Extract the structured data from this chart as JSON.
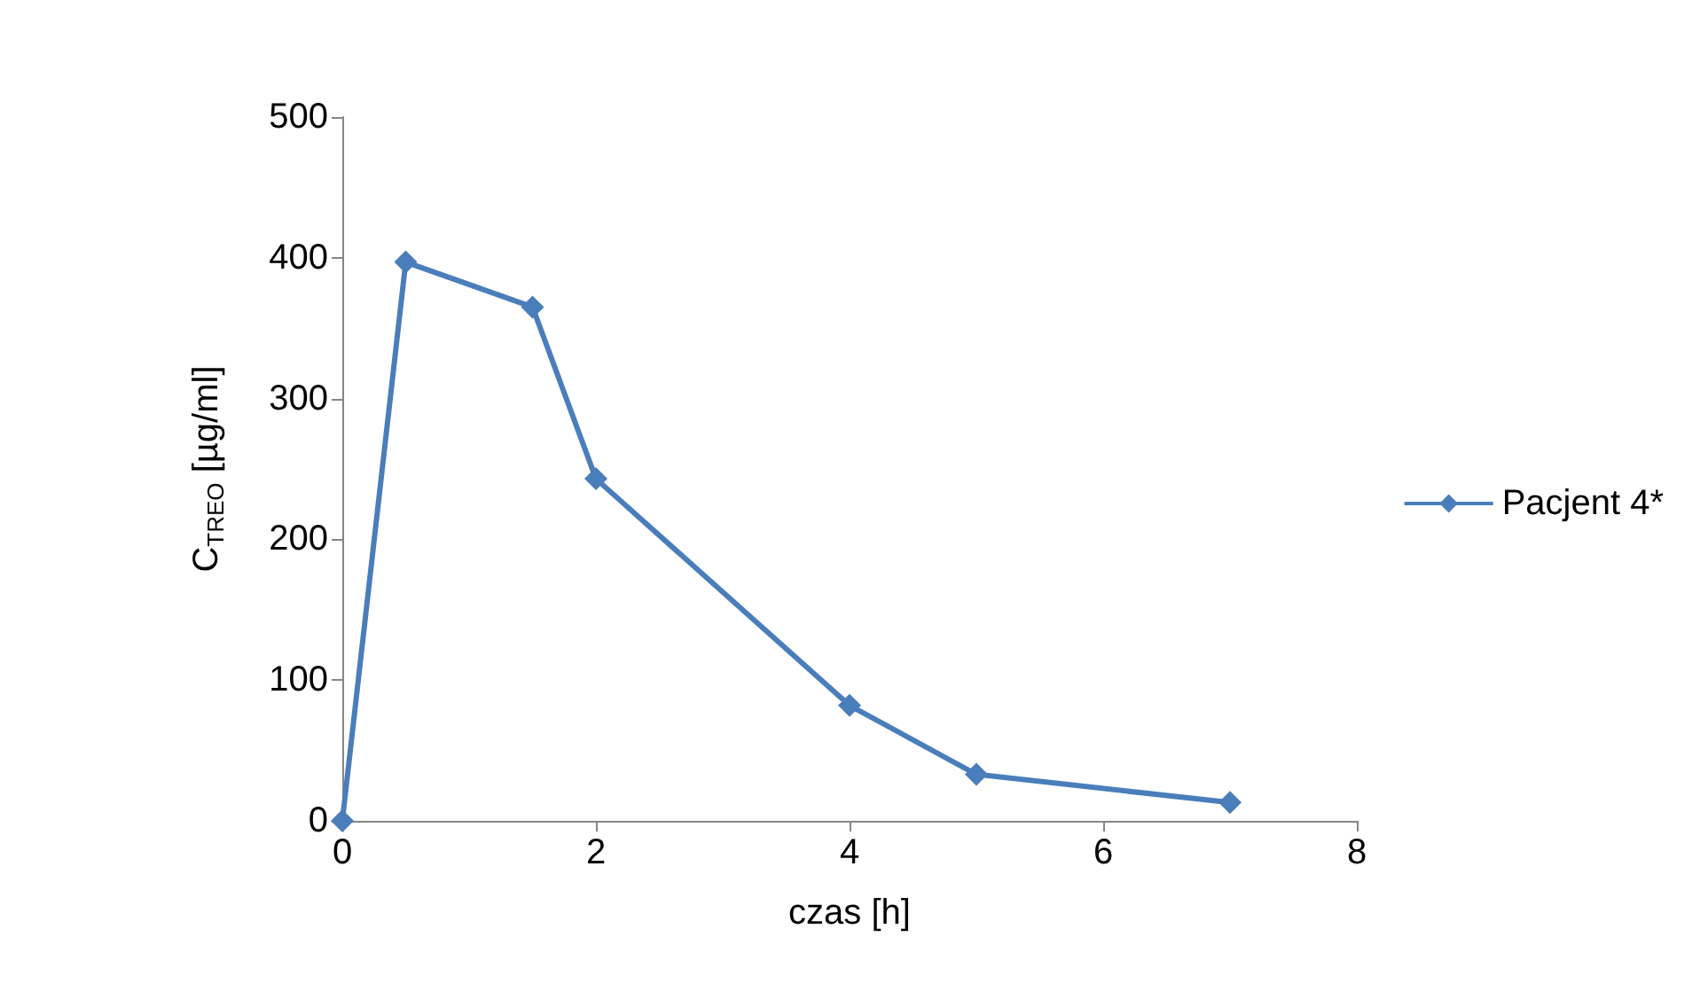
{
  "chart_data": {
    "type": "line",
    "xlabel": "czas [h]",
    "ylabel": "C$_{TREO}$ [µg/ml]",
    "x": [
      0,
      0.5,
      1.5,
      2,
      4,
      5,
      7
    ],
    "series": [
      {
        "name": "Pacjent 4*",
        "color": "#4a7ebb",
        "values": [
          0,
          397,
          365,
          243,
          82,
          33,
          13
        ]
      }
    ],
    "xlim": [
      0,
      8
    ],
    "xticks": [
      0,
      2,
      4,
      6,
      8
    ],
    "ylim": [
      0,
      500
    ],
    "yticks": [
      0,
      100,
      200,
      300,
      400,
      500
    ],
    "grid": false,
    "legend": "right",
    "marker": "diamond",
    "line_style": "solid"
  }
}
